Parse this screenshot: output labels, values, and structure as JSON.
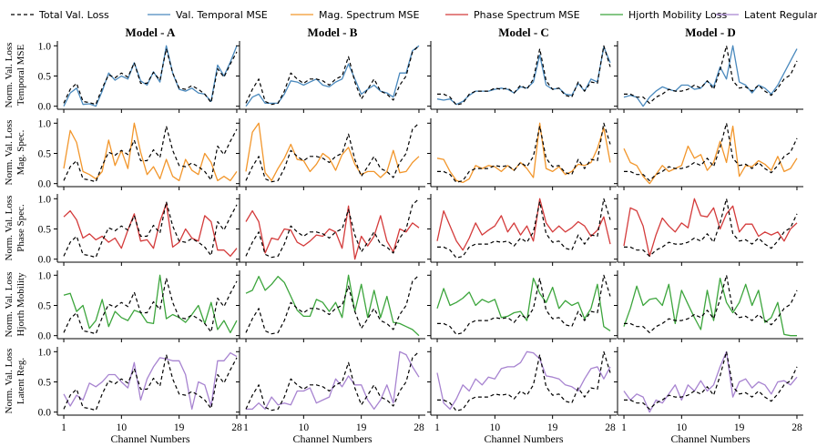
{
  "chart_data": {
    "type": "line",
    "legend": [
      {
        "name": "Total Val. Loss",
        "color": "#000000",
        "dashed": true
      },
      {
        "name": "Val. Temporal MSE",
        "color": "#4a89bd",
        "dashed": false
      },
      {
        "name": "Mag. Spectrum MSE",
        "color": "#f2962b",
        "dashed": false
      },
      {
        "name": "Phase Spectrum MSE",
        "color": "#d43b3b",
        "dashed": false
      },
      {
        "name": "Hjorth Mobility Loss",
        "color": "#3ca53c",
        "dashed": false
      },
      {
        "name": "Latent Regularization",
        "color": "#a783d0",
        "dashed": false
      }
    ],
    "legend_placement": "top",
    "models": [
      "Model - A",
      "Model - B",
      "Model - C",
      "Model - D"
    ],
    "row_labels": [
      [
        "Norm. Val. Loss",
        "Temporal MSE"
      ],
      [
        "Norm. Val. Loss",
        "Mag. Spec."
      ],
      [
        "Norm. Val. Loss",
        "Phase Spec."
      ],
      [
        "Norm. Val. Loss",
        "Hjorth Mobility"
      ],
      [
        "Norm. Val. Loss",
        "Latent Reg."
      ]
    ],
    "row_colors": [
      "#4a89bd",
      "#f2962b",
      "#d43b3b",
      "#3ca53c",
      "#a783d0"
    ],
    "x_ticks": [
      "1",
      "10",
      "19",
      "28"
    ],
    "x_tick_values": [
      1,
      10,
      19,
      28
    ],
    "y_ticks": [
      "0.0",
      "0.5",
      "1.0"
    ],
    "y_tick_values": [
      0,
      0.5,
      1.0
    ],
    "xlabel": "Channel Numbers",
    "xlim": [
      0,
      29
    ],
    "ylim": [
      -0.05,
      1.08
    ],
    "x": [
      1,
      2,
      3,
      4,
      5,
      6,
      7,
      8,
      9,
      10,
      11,
      12,
      13,
      14,
      15,
      16,
      17,
      18,
      19,
      20,
      21,
      22,
      23,
      24,
      25,
      26,
      27,
      28
    ],
    "total": [
      [
        0.05,
        0.28,
        0.38,
        0.08,
        0.06,
        0.03,
        0.3,
        0.52,
        0.47,
        0.55,
        0.48,
        0.72,
        0.38,
        0.38,
        0.56,
        0.43,
        0.95,
        0.55,
        0.3,
        0.28,
        0.34,
        0.28,
        0.2,
        0.06,
        0.62,
        0.48,
        0.7,
        0.9
      ],
      [
        0.05,
        0.28,
        0.45,
        0.08,
        0.03,
        0.05,
        0.25,
        0.55,
        0.45,
        0.38,
        0.45,
        0.45,
        0.42,
        0.35,
        0.45,
        0.5,
        0.82,
        0.4,
        0.12,
        0.28,
        0.45,
        0.25,
        0.2,
        0.1,
        0.35,
        0.5,
        0.9,
        1.0
      ],
      [
        0.2,
        0.2,
        0.15,
        0.02,
        0.05,
        0.2,
        0.25,
        0.25,
        0.25,
        0.3,
        0.28,
        0.3,
        0.22,
        0.35,
        0.28,
        0.45,
        0.95,
        0.42,
        0.28,
        0.3,
        0.18,
        0.15,
        0.4,
        0.25,
        0.4,
        0.38,
        1.0,
        0.65
      ],
      [
        0.2,
        0.2,
        0.15,
        0.15,
        0.05,
        0.15,
        0.2,
        0.28,
        0.25,
        0.25,
        0.28,
        0.35,
        0.3,
        0.42,
        0.28,
        0.6,
        1.0,
        0.42,
        0.3,
        0.32,
        0.25,
        0.35,
        0.25,
        0.18,
        0.3,
        0.45,
        0.52,
        0.75
      ]
    ],
    "series": [
      [
        [
          0.0,
          0.22,
          0.3,
          0.03,
          0.04,
          0.0,
          0.25,
          0.55,
          0.43,
          0.5,
          0.45,
          0.72,
          0.42,
          0.35,
          0.57,
          0.4,
          1.0,
          0.55,
          0.28,
          0.25,
          0.3,
          0.22,
          0.2,
          0.08,
          0.68,
          0.5,
          0.73,
          1.0
        ],
        [
          0.25,
          0.88,
          0.68,
          0.2,
          0.15,
          0.08,
          0.2,
          0.72,
          0.3,
          0.55,
          0.25,
          1.0,
          0.52,
          0.15,
          0.28,
          0.08,
          0.4,
          0.12,
          0.05,
          0.4,
          0.22,
          0.15,
          0.5,
          0.35,
          0.05,
          0.12,
          0.05,
          0.2
        ],
        [
          0.7,
          0.8,
          0.65,
          0.35,
          0.42,
          0.32,
          0.38,
          0.28,
          0.35,
          0.18,
          0.48,
          0.75,
          0.3,
          0.32,
          0.18,
          0.62,
          0.92,
          0.2,
          0.28,
          0.5,
          0.35,
          0.3,
          0.72,
          0.62,
          0.15,
          0.15,
          0.05,
          0.18
        ],
        [
          0.67,
          0.7,
          0.4,
          0.5,
          0.12,
          0.25,
          0.6,
          0.15,
          0.4,
          0.3,
          0.25,
          0.42,
          0.38,
          0.22,
          0.2,
          1.0,
          0.28,
          0.35,
          0.3,
          0.22,
          0.35,
          0.5,
          0.2,
          0.55,
          0.1,
          0.25,
          0.05,
          0.25
        ],
        [
          0.3,
          0.1,
          0.28,
          0.2,
          0.48,
          0.42,
          0.5,
          0.62,
          0.62,
          0.5,
          0.4,
          0.82,
          0.2,
          0.55,
          0.75,
          0.9,
          0.88,
          0.85,
          0.85,
          0.62,
          0.05,
          0.5,
          0.45,
          0.1,
          0.85,
          0.85,
          0.98,
          0.92
        ]
      ],
      [
        [
          0.0,
          0.15,
          0.2,
          0.05,
          0.05,
          0.05,
          0.2,
          0.42,
          0.4,
          0.35,
          0.4,
          0.45,
          0.35,
          0.32,
          0.4,
          0.45,
          0.7,
          0.45,
          0.2,
          0.28,
          0.35,
          0.25,
          0.22,
          0.15,
          0.55,
          0.55,
          0.92,
          1.0
        ],
        [
          0.2,
          0.85,
          1.0,
          0.18,
          0.05,
          0.25,
          0.42,
          0.65,
          0.4,
          0.38,
          0.2,
          0.32,
          0.5,
          0.42,
          0.22,
          0.48,
          0.6,
          0.32,
          0.15,
          0.2,
          0.2,
          0.1,
          0.2,
          0.55,
          0.18,
          0.2,
          0.35,
          0.45
        ],
        [
          0.62,
          0.8,
          0.62,
          0.1,
          0.35,
          0.32,
          0.5,
          0.48,
          0.28,
          0.22,
          0.3,
          0.4,
          0.38,
          0.5,
          0.45,
          0.18,
          0.88,
          0.0,
          0.38,
          0.22,
          0.38,
          0.72,
          0.3,
          0.12,
          0.5,
          0.45,
          0.6,
          0.52
        ],
        [
          0.7,
          0.75,
          0.98,
          0.75,
          0.85,
          0.98,
          0.88,
          0.65,
          0.42,
          0.32,
          0.32,
          0.6,
          0.55,
          0.4,
          0.55,
          0.3,
          1.0,
          0.4,
          0.85,
          0.3,
          0.75,
          0.3,
          0.65,
          0.22,
          0.2,
          0.15,
          0.1,
          0.0
        ],
        [
          0.05,
          0.05,
          0.15,
          0.05,
          0.25,
          0.12,
          0.15,
          0.12,
          0.35,
          0.35,
          0.4,
          0.15,
          0.2,
          0.25,
          0.55,
          0.42,
          0.6,
          0.45,
          0.45,
          0.2,
          0.05,
          0.2,
          0.45,
          0.15,
          1.0,
          0.95,
          0.75,
          0.58
        ]
      ],
      [
        [
          0.12,
          0.1,
          0.12,
          0.03,
          0.08,
          0.18,
          0.25,
          0.25,
          0.25,
          0.28,
          0.3,
          0.28,
          0.22,
          0.32,
          0.3,
          0.4,
          0.85,
          0.35,
          0.28,
          0.3,
          0.2,
          0.18,
          0.38,
          0.25,
          0.45,
          0.4,
          0.98,
          0.72
        ],
        [
          0.42,
          0.4,
          0.2,
          0.05,
          0.02,
          0.08,
          0.3,
          0.25,
          0.3,
          0.28,
          0.2,
          0.3,
          0.22,
          0.35,
          0.25,
          0.1,
          1.0,
          0.25,
          0.2,
          0.28,
          0.15,
          0.2,
          0.32,
          0.3,
          0.35,
          0.58,
          0.92,
          0.35
        ],
        [
          0.3,
          0.8,
          0.55,
          0.3,
          0.15,
          0.35,
          0.6,
          0.4,
          0.48,
          0.55,
          0.72,
          0.45,
          0.6,
          0.4,
          0.55,
          0.3,
          1.0,
          0.6,
          0.45,
          0.55,
          0.45,
          0.52,
          0.62,
          0.55,
          0.38,
          0.48,
          0.7,
          0.25
        ],
        [
          0.45,
          0.78,
          0.5,
          0.55,
          0.62,
          0.72,
          0.5,
          0.6,
          0.55,
          0.6,
          0.3,
          0.32,
          0.38,
          0.4,
          0.25,
          0.95,
          0.7,
          0.55,
          0.8,
          0.45,
          0.58,
          0.5,
          0.55,
          0.28,
          0.45,
          0.85,
          0.15,
          0.08
        ],
        [
          0.65,
          0.15,
          0.05,
          0.22,
          0.45,
          0.35,
          0.55,
          0.45,
          0.58,
          0.55,
          0.72,
          0.75,
          0.75,
          0.82,
          1.0,
          0.98,
          0.88,
          0.6,
          0.58,
          0.55,
          0.45,
          0.42,
          0.35,
          0.55,
          0.72,
          0.75,
          0.55,
          0.75
        ]
      ],
      [
        [
          0.15,
          0.18,
          0.15,
          0.0,
          0.15,
          0.25,
          0.32,
          0.28,
          0.25,
          0.35,
          0.35,
          0.28,
          0.3,
          0.42,
          0.32,
          0.65,
          0.45,
          1.0,
          0.4,
          0.35,
          0.22,
          0.35,
          0.3,
          0.2,
          0.35,
          0.55,
          0.75,
          0.95
        ],
        [
          0.58,
          0.35,
          0.3,
          0.12,
          0.0,
          0.15,
          0.3,
          0.2,
          0.25,
          0.3,
          0.62,
          0.42,
          0.48,
          0.22,
          0.35,
          0.7,
          0.35,
          0.95,
          0.12,
          0.3,
          0.28,
          0.38,
          0.32,
          0.22,
          0.45,
          0.2,
          0.25,
          0.42
        ],
        [
          0.22,
          0.85,
          0.8,
          0.55,
          0.05,
          0.4,
          0.68,
          0.55,
          0.45,
          0.6,
          0.52,
          1.0,
          0.72,
          0.7,
          0.85,
          0.5,
          0.75,
          0.88,
          0.45,
          0.58,
          0.58,
          0.38,
          0.45,
          0.4,
          0.45,
          0.3,
          0.5,
          0.6
        ],
        [
          0.15,
          0.45,
          0.82,
          0.5,
          0.6,
          0.62,
          0.5,
          0.85,
          0.2,
          0.75,
          0.52,
          0.3,
          0.1,
          0.75,
          0.25,
          0.95,
          0.55,
          0.38,
          0.55,
          0.85,
          0.5,
          0.75,
          0.22,
          0.3,
          0.55,
          0.02,
          0.0,
          0.0
        ],
        [
          0.35,
          0.2,
          0.3,
          0.25,
          0.0,
          0.2,
          0.15,
          0.3,
          0.45,
          0.2,
          0.45,
          0.35,
          0.52,
          0.35,
          0.45,
          0.75,
          1.0,
          0.25,
          0.5,
          0.55,
          0.4,
          0.5,
          0.45,
          0.3,
          0.5,
          0.52,
          0.45,
          0.58
        ]
      ]
    ]
  }
}
